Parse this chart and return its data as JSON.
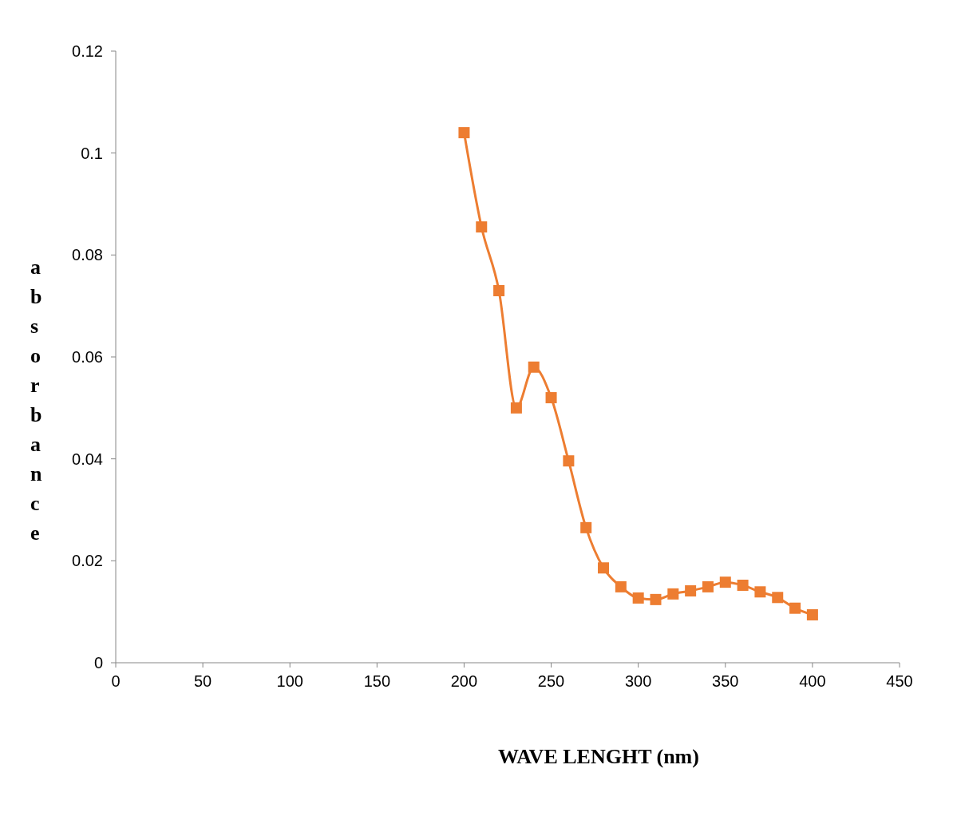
{
  "chart_data": {
    "type": "line",
    "xlabel": "WAVE LENGHT (nm)",
    "ylabel": "absorbance",
    "x": [
      200,
      210,
      220,
      230,
      240,
      250,
      260,
      270,
      280,
      290,
      300,
      310,
      320,
      330,
      340,
      350,
      360,
      370,
      380,
      390,
      400
    ],
    "values": [
      0.104,
      0.0855,
      0.073,
      0.05,
      0.058,
      0.052,
      0.0396,
      0.0265,
      0.0186,
      0.0149,
      0.0127,
      0.0124,
      0.0135,
      0.0141,
      0.0149,
      0.0158,
      0.0152,
      0.0139,
      0.0128,
      0.0107,
      0.0094
    ],
    "color": "#ed7d31",
    "marker": "square",
    "line_style": "solid",
    "xlim": [
      0,
      450
    ],
    "xticks": [
      0,
      50,
      100,
      150,
      200,
      250,
      300,
      350,
      400,
      450
    ],
    "ylim": [
      0,
      0.12
    ],
    "yticks": [
      0,
      0.02,
      0.04,
      0.06,
      0.08,
      0.1,
      0.12
    ],
    "grid": false
  }
}
